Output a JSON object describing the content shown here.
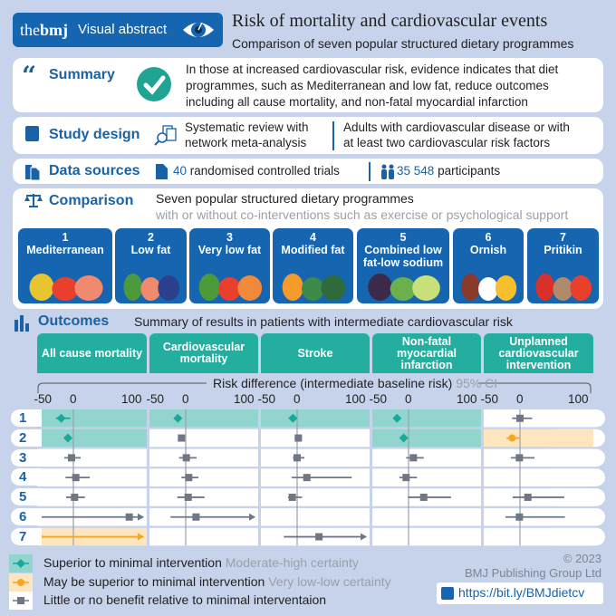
{
  "header": {
    "brand": "thebmj",
    "brand_bold": "bmj",
    "brand_pre": "the",
    "badge": "Visual abstract",
    "title": "Risk of mortality and cardiovascular events",
    "subtitle": "Comparison of seven popular structured dietary programmes"
  },
  "summary": {
    "label": "Summary",
    "lines": [
      "In those at increased cardiovascular risk, evidence indicates that diet",
      "programmes, such as Mediterranean and low fat, reduce outcomes",
      "including all cause mortality, and non-fatal myocardial infarction"
    ]
  },
  "study_design": {
    "label": "Study design",
    "design": [
      "Systematic review with",
      "network meta-analysis"
    ],
    "population": [
      "Adults with cardiovascular disease or with",
      "at least two cardiovascular risk factors"
    ]
  },
  "data_sources": {
    "label": "Data sources",
    "trials_count": "40",
    "trials_text": "randomised controlled trials",
    "participants_count": "35 548",
    "participants_text": "participants"
  },
  "comparison": {
    "label": "Comparison",
    "text": "Seven popular structured dietary programmes",
    "subtext": "with or without co-interventions such as exercise or psychological support",
    "diets": [
      {
        "n": "1",
        "name": "Mediterranean"
      },
      {
        "n": "2",
        "name": "Low fat"
      },
      {
        "n": "3",
        "name": "Very low fat"
      },
      {
        "n": "4",
        "name": "Modified fat"
      },
      {
        "n": "5",
        "name": "Combined low fat-low sodium"
      },
      {
        "n": "6",
        "name": "Ornish"
      },
      {
        "n": "7",
        "name": "Pritikin"
      }
    ]
  },
  "outcomes": {
    "label": "Outcomes",
    "text": "Summary of results in patients with intermediate cardiovascular risk"
  },
  "colors": {
    "background": "#c6d3ea",
    "brand_blue": "#1565b0",
    "teal": "#23aea0",
    "superior_marker": "#18a999",
    "superior_fill": "#92d5ce",
    "maybe_marker": "#f5a623",
    "maybe_fill": "#fde5bd",
    "little_marker": "#6f7785"
  },
  "chart_data": {
    "type": "forest",
    "axis_label": "Risk difference (intermediate baseline risk)",
    "axis_label_suffix": "95% CI",
    "ticks": [
      "-50",
      "0",
      "100"
    ],
    "xlim": [
      -60,
      120
    ],
    "rows": [
      "1",
      "2",
      "3",
      "4",
      "5",
      "6",
      "7"
    ],
    "panels": [
      {
        "title": "All cause mortality",
        "points": [
          {
            "row": 1,
            "est": -20,
            "ci": [
              -29,
              -5
            ],
            "class": "superior"
          },
          {
            "row": 2,
            "est": -9,
            "ci": [
              -9,
              -9
            ],
            "class": "superior"
          },
          {
            "row": 3,
            "est": -3,
            "ci": [
              -15,
              12
            ],
            "class": "little"
          },
          {
            "row": 4,
            "est": 4,
            "ci": [
              -13,
              27
            ],
            "class": "little"
          },
          {
            "row": 5,
            "est": 2,
            "ci": [
              -12,
              19
            ],
            "class": "little"
          },
          {
            "row": 6,
            "est": 92,
            "ci": [
              -54,
              120
            ],
            "arrow": true,
            "class": "little"
          },
          {
            "row": 7,
            "est": -57,
            "ci": [
              -57,
              120
            ],
            "arrow": true,
            "class": "maybe"
          }
        ]
      },
      {
        "title": "Cardiovascular mortality",
        "points": [
          {
            "row": 1,
            "est": -13,
            "ci": [
              -13,
              -13
            ],
            "class": "superior"
          },
          {
            "row": 2,
            "est": -7,
            "ci": [
              -10,
              -2
            ],
            "class": "little"
          },
          {
            "row": 3,
            "est": 1,
            "ci": [
              -11,
              18
            ],
            "class": "little"
          },
          {
            "row": 4,
            "est": 5,
            "ci": [
              -7,
              21
            ],
            "class": "little"
          },
          {
            "row": 5,
            "est": 4,
            "ci": [
              -14,
              31
            ],
            "class": "little"
          },
          {
            "row": 6,
            "est": 17,
            "ci": [
              -25,
              120
            ],
            "arrow": true,
            "class": "little"
          }
        ]
      },
      {
        "title": "Stroke",
        "points": [
          {
            "row": 1,
            "est": -7,
            "ci": [
              -7,
              -7
            ],
            "class": "superior"
          },
          {
            "row": 2,
            "est": 2,
            "ci": [
              -4,
              8
            ],
            "class": "little"
          },
          {
            "row": 3,
            "est": 0,
            "ci": [
              -7,
              12
            ],
            "class": "little"
          },
          {
            "row": 4,
            "est": 16,
            "ci": [
              -9,
              90
            ],
            "class": "little"
          },
          {
            "row": 5,
            "est": -8,
            "ci": [
              -15,
              8
            ],
            "class": "little"
          },
          {
            "row": 7,
            "est": 36,
            "ci": [
              -22,
              120
            ],
            "arrow": true,
            "class": "little"
          }
        ]
      },
      {
        "title": "Non-fatal myocardial infarction",
        "points": [
          {
            "row": 1,
            "est": -19,
            "ci": [
              -19,
              -19
            ],
            "class": "superior"
          },
          {
            "row": 2,
            "est": -8,
            "ci": [
              -8,
              -8
            ],
            "class": "superior"
          },
          {
            "row": 3,
            "est": 8,
            "ci": [
              -4,
              25
            ],
            "class": "little"
          },
          {
            "row": 4,
            "est": -4,
            "ci": [
              -15,
              14
            ],
            "class": "little"
          },
          {
            "row": 5,
            "est": 25,
            "ci": [
              -1,
              70
            ],
            "class": "little"
          }
        ]
      },
      {
        "title": "Unplanned cardiovascular intervention",
        "points": [
          {
            "row": 1,
            "est": 0,
            "ci": [
              -13,
              20
            ],
            "class": "little"
          },
          {
            "row": 2,
            "est": -13,
            "ci": [
              -22,
              0
            ],
            "class": "maybe"
          },
          {
            "row": 3,
            "est": -1,
            "ci": [
              -15,
              24
            ],
            "class": "little"
          },
          {
            "row": 5,
            "est": 13,
            "ci": [
              -12,
              73
            ],
            "class": "little"
          },
          {
            "row": 6,
            "est": -1,
            "ci": [
              -24,
              74
            ],
            "class": "little"
          }
        ]
      }
    ]
  },
  "legend": [
    {
      "label": "Superior to minimal intervention",
      "certainty": "Moderate-high certainty",
      "class": "superior"
    },
    {
      "label": "May be superior to minimal intervention",
      "certainty": "Very low-low certainty",
      "class": "maybe"
    },
    {
      "label": "Little or no benefit relative to minimal interventaion",
      "certainty": "",
      "class": "little"
    }
  ],
  "footer": {
    "copyright": "© 2023",
    "publisher": "BMJ Publishing Group Ltd",
    "link": "https://bit.ly/BMJdietcv"
  }
}
